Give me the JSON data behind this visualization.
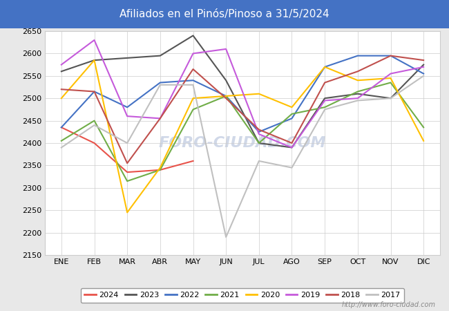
{
  "title": "Afiliados en el Pinós/Pinoso a 31/5/2024",
  "title_bg_color": "#4472c4",
  "title_text_color": "white",
  "ylim": [
    2150,
    2650
  ],
  "months": [
    "ENE",
    "FEB",
    "MAR",
    "ABR",
    "MAY",
    "JUN",
    "JUL",
    "AGO",
    "SEP",
    "OCT",
    "NOV",
    "DIC"
  ],
  "watermark_url": "http://www.foro-ciudad.com",
  "watermark_text": "FORO-CIUDAD.COM",
  "series": {
    "2024": {
      "color": "#e8534a",
      "data": [
        2435,
        2400,
        2335,
        2340,
        2360,
        null,
        null,
        null,
        null,
        null,
        null,
        null
      ]
    },
    "2023": {
      "color": "#555555",
      "data": [
        2560,
        2585,
        2590,
        2595,
        2640,
        2540,
        2400,
        2390,
        2500,
        2510,
        2500,
        2575
      ]
    },
    "2022": {
      "color": "#4472c4",
      "data": [
        2435,
        2515,
        2480,
        2535,
        2540,
        2505,
        2425,
        2455,
        2570,
        2595,
        2595,
        2555
      ]
    },
    "2021": {
      "color": "#70ad47",
      "data": [
        2405,
        2450,
        2315,
        2340,
        2475,
        2505,
        2400,
        2465,
        2480,
        2515,
        2535,
        2435
      ]
    },
    "2020": {
      "color": "#ffc000",
      "data": [
        2500,
        2585,
        2245,
        2345,
        2500,
        2505,
        2510,
        2480,
        2570,
        2540,
        2545,
        2405
      ]
    },
    "2019": {
      "color": "#c55adb",
      "data": [
        2575,
        2630,
        2460,
        2455,
        2600,
        2610,
        2420,
        2390,
        2495,
        2500,
        2555,
        2570
      ]
    },
    "2018": {
      "color": "#c0504d",
      "data": [
        2520,
        2515,
        2355,
        2455,
        2565,
        2500,
        2430,
        2400,
        2535,
        2560,
        2595,
        2585
      ]
    },
    "2017": {
      "color": "#c0c0c0",
      "data": [
        2390,
        2440,
        2400,
        2530,
        2530,
        2190,
        2360,
        2345,
        2475,
        2495,
        2500,
        2550
      ]
    }
  },
  "legend_order": [
    "2024",
    "2023",
    "2022",
    "2021",
    "2020",
    "2019",
    "2018",
    "2017"
  ],
  "outer_bg_color": "#e8e8e8",
  "plot_bg_color": "white",
  "grid_color": "#cccccc",
  "watermark_color": "#d0d8e8"
}
